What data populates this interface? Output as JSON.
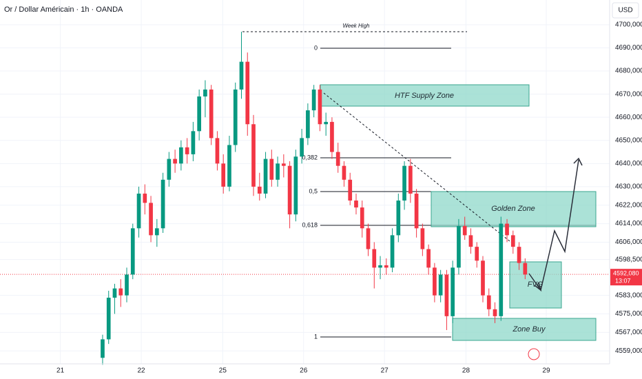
{
  "chart_data": {
    "type": "candlestick",
    "title": "Or / Dollar Américain · 1h · OANDA",
    "currency": "USD",
    "up_color": "#089981",
    "down_color": "#f23645",
    "grid": true,
    "open": [
      4556,
      4564,
      4582,
      4586,
      4583,
      4592,
      4612,
      4627,
      4623,
      4609,
      4612,
      4633,
      4642,
      4640,
      4647,
      4644,
      4654,
      4669,
      4672,
      4651,
      4640,
      4630,
      4648,
      4672,
      4684,
      4657,
      4630,
      4627,
      4642,
      4633,
      4640,
      4639,
      4618,
      4643,
      4651,
      4663,
      4672,
      4657,
      4658,
      4645,
      4639,
      4633,
      4624,
      4621,
      4612,
      4603,
      4595,
      4596,
      4595,
      4609,
      4624,
      4639,
      4627,
      4612,
      4603,
      4595,
      4583,
      4592,
      4574,
      4595,
      4613,
      4609,
      4604,
      4598,
      4583,
      4577,
      4574,
      4614,
      4609,
      4604,
      4597
    ],
    "high": [
      4566,
      4585,
      4588,
      4590,
      4595,
      4614,
      4630,
      4631,
      4626,
      4616,
      4636,
      4645,
      4646,
      4650,
      4651,
      4658,
      4672,
      4676,
      4674,
      4654,
      4644,
      4652,
      4675,
      4697,
      4688,
      4661,
      4636,
      4645,
      4646,
      4643,
      4644,
      4641,
      4646,
      4655,
      4666,
      4674,
      4674,
      4662,
      4660,
      4649,
      4641,
      4636,
      4627,
      4624,
      4614,
      4606,
      4600,
      4599,
      4612,
      4627,
      4641,
      4642,
      4629,
      4614,
      4605,
      4597,
      4594,
      4594,
      4598,
      4616,
      4617,
      4612,
      4606,
      4600,
      4586,
      4580,
      4617,
      4616,
      4611,
      4606,
      4599
    ],
    "low": [
      4553,
      4562,
      4575,
      4578,
      4580,
      4590,
      4608,
      4618,
      4606,
      4604,
      4610,
      4630,
      4636,
      4637,
      4640,
      4641,
      4650,
      4660,
      4648,
      4637,
      4627,
      4628,
      4645,
      4668,
      4652,
      4626,
      4624,
      4625,
      4630,
      4630,
      4634,
      4612,
      4615,
      4640,
      4648,
      4660,
      4654,
      4652,
      4642,
      4636,
      4630,
      4622,
      4618,
      4608,
      4600,
      4586,
      4590,
      4592,
      4593,
      4606,
      4620,
      4623,
      4608,
      4600,
      4592,
      4580,
      4580,
      4568,
      4571,
      4592,
      4607,
      4601,
      4595,
      4580,
      4574,
      4571,
      4572,
      4606,
      4601,
      4594,
      4590
    ],
    "close": [
      4564,
      4582,
      4586,
      4583,
      4592,
      4612,
      4627,
      4623,
      4609,
      4612,
      4633,
      4642,
      4640,
      4647,
      4644,
      4654,
      4669,
      4672,
      4651,
      4640,
      4630,
      4648,
      4672,
      4684,
      4657,
      4630,
      4627,
      4642,
      4633,
      4640,
      4639,
      4618,
      4643,
      4651,
      4663,
      4672,
      4657,
      4658,
      4645,
      4639,
      4633,
      4624,
      4621,
      4612,
      4603,
      4595,
      4596,
      4595,
      4609,
      4624,
      4639,
      4627,
      4612,
      4603,
      4595,
      4583,
      4592,
      4574,
      4595,
      4613,
      4609,
      4604,
      4598,
      4583,
      4577,
      4574,
      4614,
      4609,
      4604,
      4597,
      4592
    ],
    "xlim": [
      -17,
      84
    ],
    "xticks": [
      {
        "value": -7,
        "label": "21"
      },
      {
        "value": 6.4,
        "label": "22"
      },
      {
        "value": 19.9,
        "label": "25"
      },
      {
        "value": 33.3,
        "label": "26"
      },
      {
        "value": 46.7,
        "label": "27"
      },
      {
        "value": 60.2,
        "label": "28"
      },
      {
        "value": 73.5,
        "label": "29"
      }
    ],
    "ylim": [
      4553.4,
      4710.7
    ],
    "yticks": [
      {
        "value": 4700,
        "label": "4700,000"
      },
      {
        "value": 4690,
        "label": "4690,000"
      },
      {
        "value": 4680,
        "label": "4680,000"
      },
      {
        "value": 4670,
        "label": "4670,000"
      },
      {
        "value": 4660,
        "label": "4660,000"
      },
      {
        "value": 4650,
        "label": "4650,000"
      },
      {
        "value": 4640,
        "label": "4640,000"
      },
      {
        "value": 4630,
        "label": "4630,000"
      },
      {
        "value": 4622,
        "label": "4622,000"
      },
      {
        "value": 4614,
        "label": "4614,000"
      },
      {
        "value": 4606,
        "label": "4606,000"
      },
      {
        "value": 4598.5,
        "label": "4598,500"
      },
      {
        "value": 4583,
        "label": "4583,000"
      },
      {
        "value": 4575,
        "label": "4575,000"
      },
      {
        "value": 4567,
        "label": "4567,000"
      },
      {
        "value": 4559,
        "label": "4559,000"
      }
    ],
    "last_price": {
      "value": 4592.08,
      "label": "4592,080"
    },
    "countdown": "13:07",
    "annotations": {
      "week_high": "Week High",
      "supply": "HTF Supply Zone",
      "golden": "Golden Zone",
      "fvg": "FVG",
      "buy": "Zone Buy"
    },
    "fib_levels": [
      "0",
      "0,382",
      "0,5",
      "0,618",
      "1"
    ]
  }
}
